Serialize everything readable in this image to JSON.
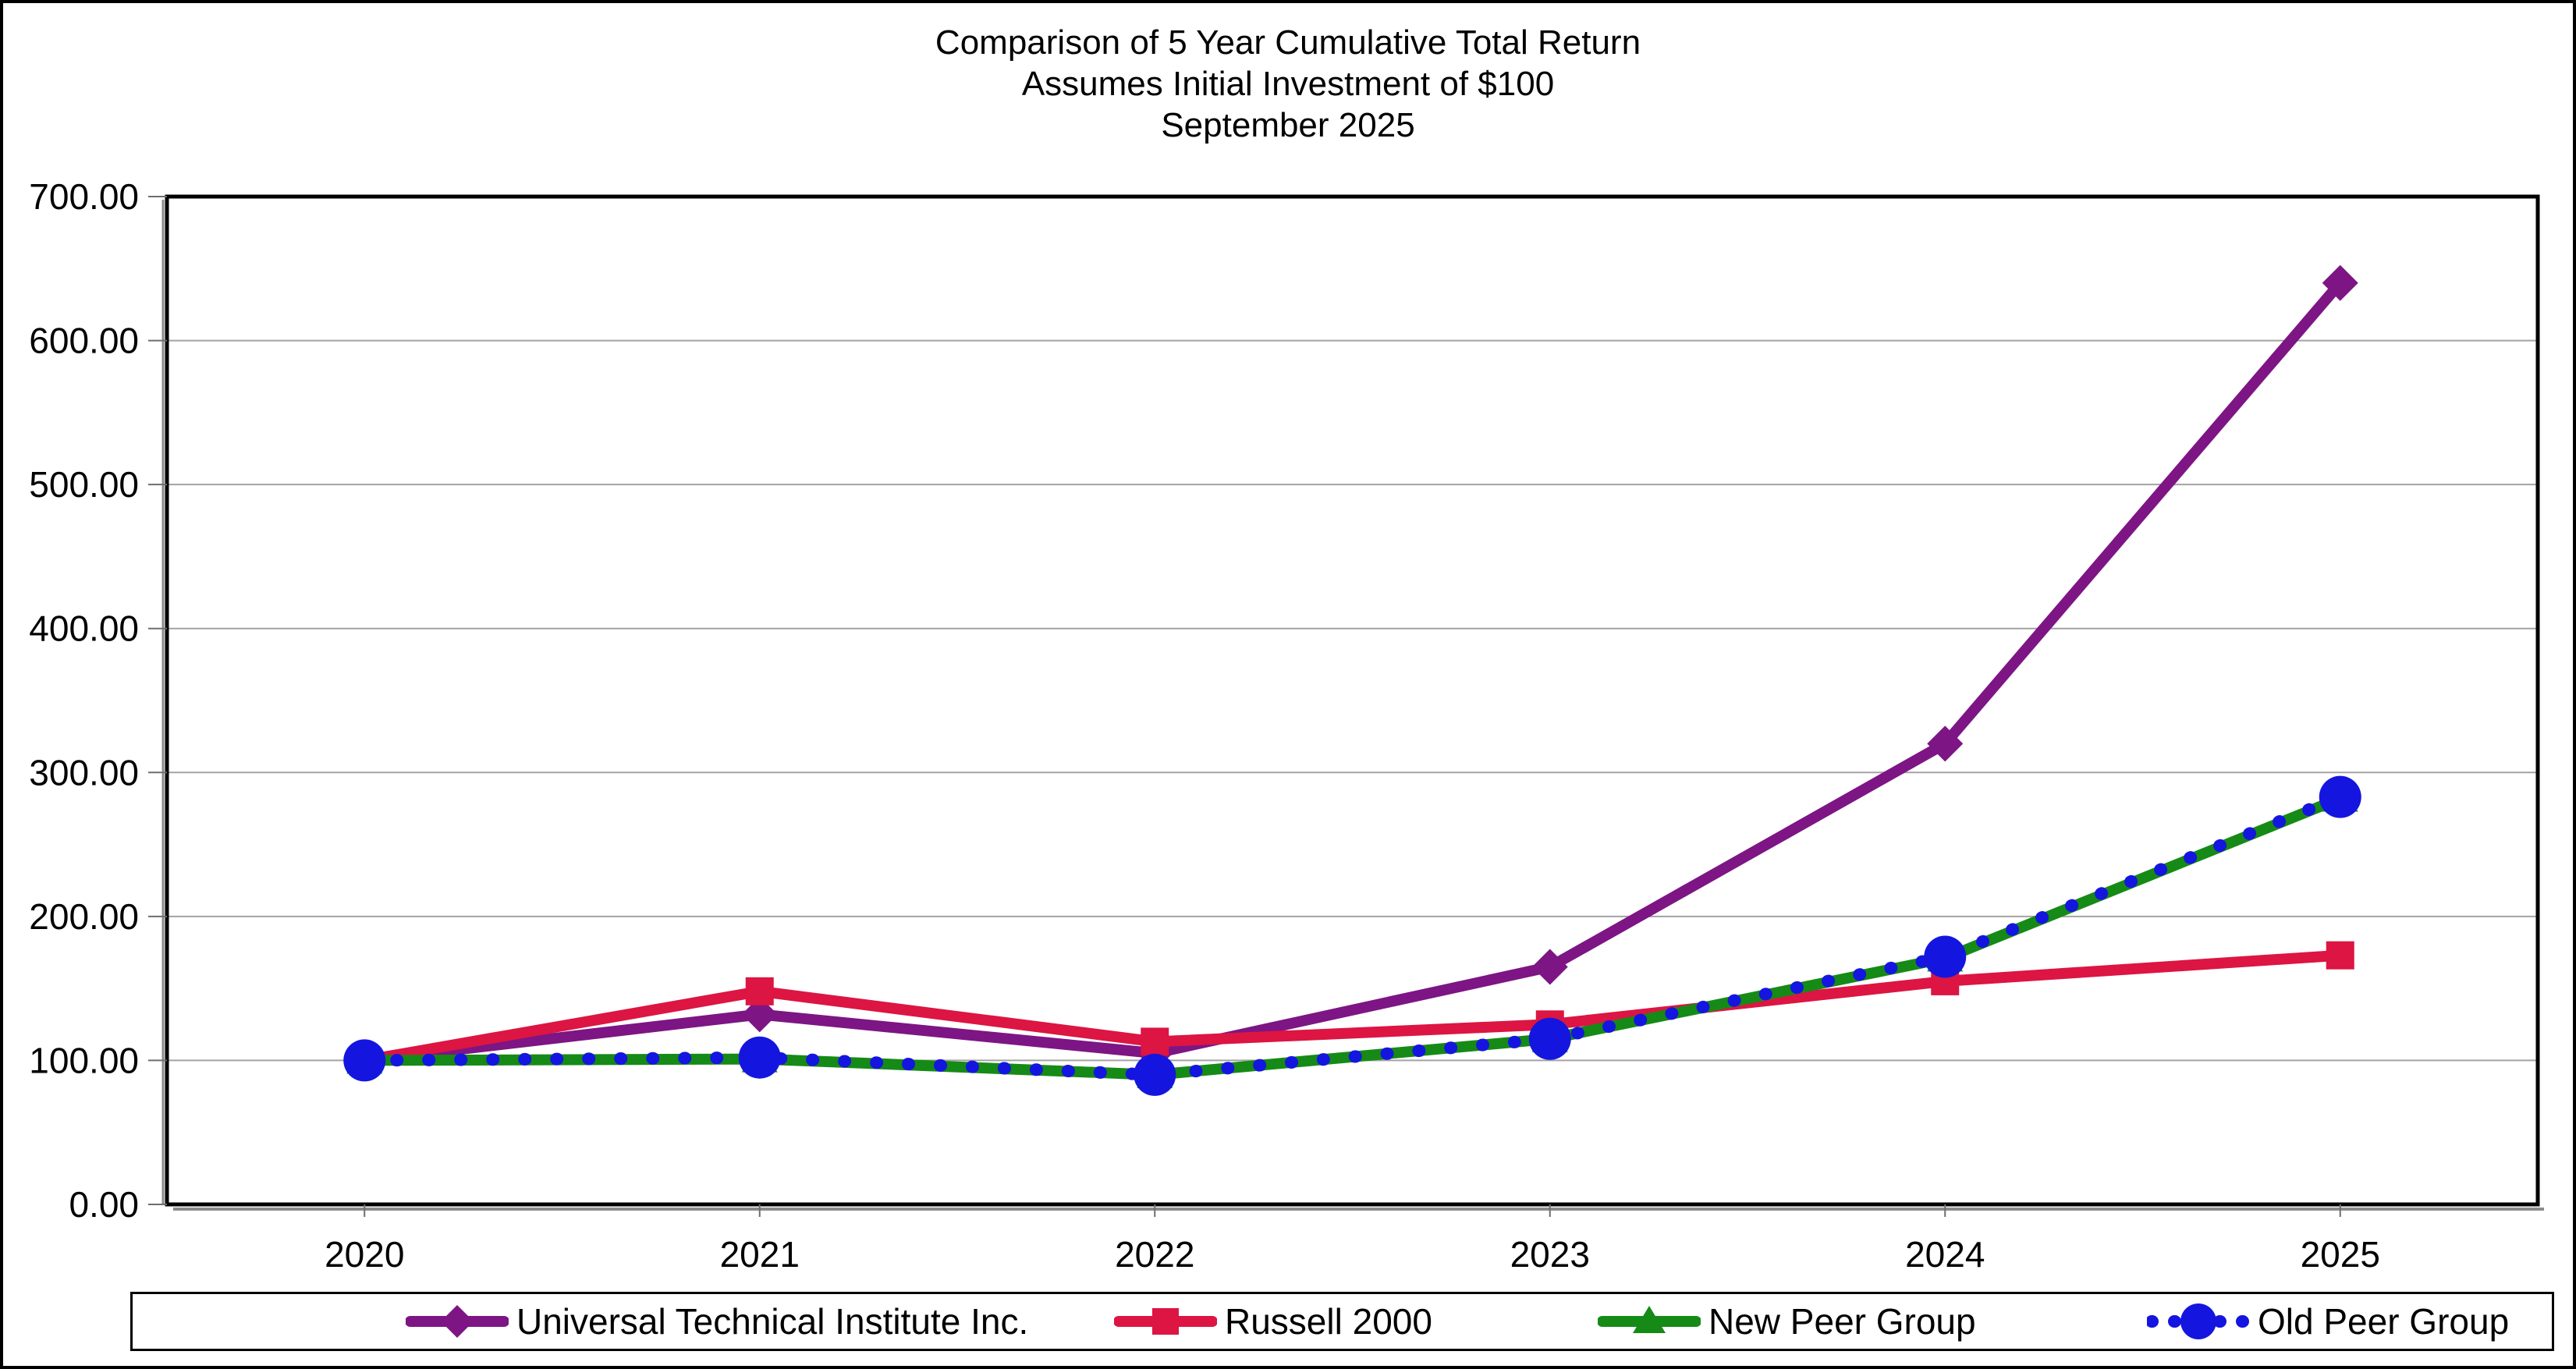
{
  "title": {
    "line1": "Comparison of 5 Year Cumulative Total Return",
    "line2": "Assumes Initial Investment of $100",
    "line3": "September 2025"
  },
  "chart_data": {
    "type": "line",
    "categories": [
      "2020",
      "2021",
      "2022",
      "2023",
      "2024",
      "2025"
    ],
    "y_axis": {
      "min": 0,
      "max": 700,
      "step": 100,
      "tick_labels": [
        "0.00",
        "100.00",
        "200.00",
        "300.00",
        "400.00",
        "500.00",
        "600.00",
        "700.00"
      ]
    },
    "grid": true,
    "legend_position": "bottom",
    "series": [
      {
        "name": "Universal Technical Institute Inc.",
        "color": "#7D1584",
        "marker": "diamond",
        "line_style": "solid",
        "values": [
          100,
          132,
          105,
          165,
          320,
          640
        ]
      },
      {
        "name": "Russell 2000",
        "color": "#DC1543",
        "marker": "square",
        "line_style": "solid",
        "values": [
          100,
          148,
          113,
          125,
          155,
          173
        ]
      },
      {
        "name": "New Peer Group",
        "color": "#168A16",
        "marker": "triangle",
        "line_style": "solid",
        "values": [
          100,
          101,
          90,
          115,
          171,
          282
        ]
      },
      {
        "name": "Old Peer Group",
        "color": "#1515E0",
        "marker": "circle",
        "line_style": "dotted",
        "values": [
          100,
          102,
          90,
          115,
          172,
          283
        ]
      }
    ]
  },
  "colors": {
    "gridline": "#A3A3A3",
    "axis": "#000000",
    "axis_shadow": "#8C8C8C",
    "tick": "#6E6E6E"
  }
}
